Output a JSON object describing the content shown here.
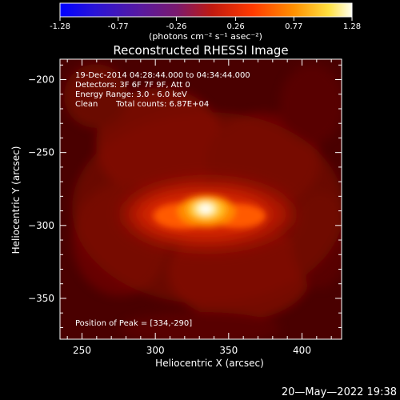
{
  "colorbar": {
    "ticks": [
      "-1.28",
      "-0.77",
      "-0.26",
      "0.26",
      "0.77",
      "1.28"
    ],
    "tick_values": [
      -1.28,
      -0.77,
      -0.26,
      0.26,
      0.77,
      1.28
    ],
    "range": [
      -1.28,
      1.28
    ],
    "units_label": "(photons cm⁻² s⁻¹ asec⁻²)",
    "colormap": "hot (blue-purple-red-yellow-white)"
  },
  "chart_data": {
    "type": "heatmap",
    "title": "Reconstructed RHESSI Image",
    "xlabel": "Heliocentric X (arcsec)",
    "ylabel": "Heliocentric Y (arcsec)",
    "xlim": [
      235,
      427
    ],
    "ylim": [
      -378,
      -186
    ],
    "xticks": [
      250,
      300,
      350,
      400
    ],
    "yticks": [
      -200,
      -250,
      -300,
      -350
    ],
    "xtick_labels": [
      "250",
      "300",
      "350",
      "400"
    ],
    "ytick_labels": [
      "−200",
      "−250",
      "−300",
      "−350"
    ],
    "peak": [
      334,
      -290
    ],
    "source_extent_x": [
      295,
      370
    ],
    "annotations": [
      "19-Dec-2014 04:28:44.000 to 04:34:44.000",
      "Detectors: 3F 6F 7F 9F, Att 0",
      "Energy Range: 3.0 - 6.0 keV",
      "Clean",
      "Total counts: 6.87E+04",
      "Position of Peak = [334,-290]"
    ]
  },
  "footer": {
    "timestamp": "20—May—2022 19:38"
  }
}
